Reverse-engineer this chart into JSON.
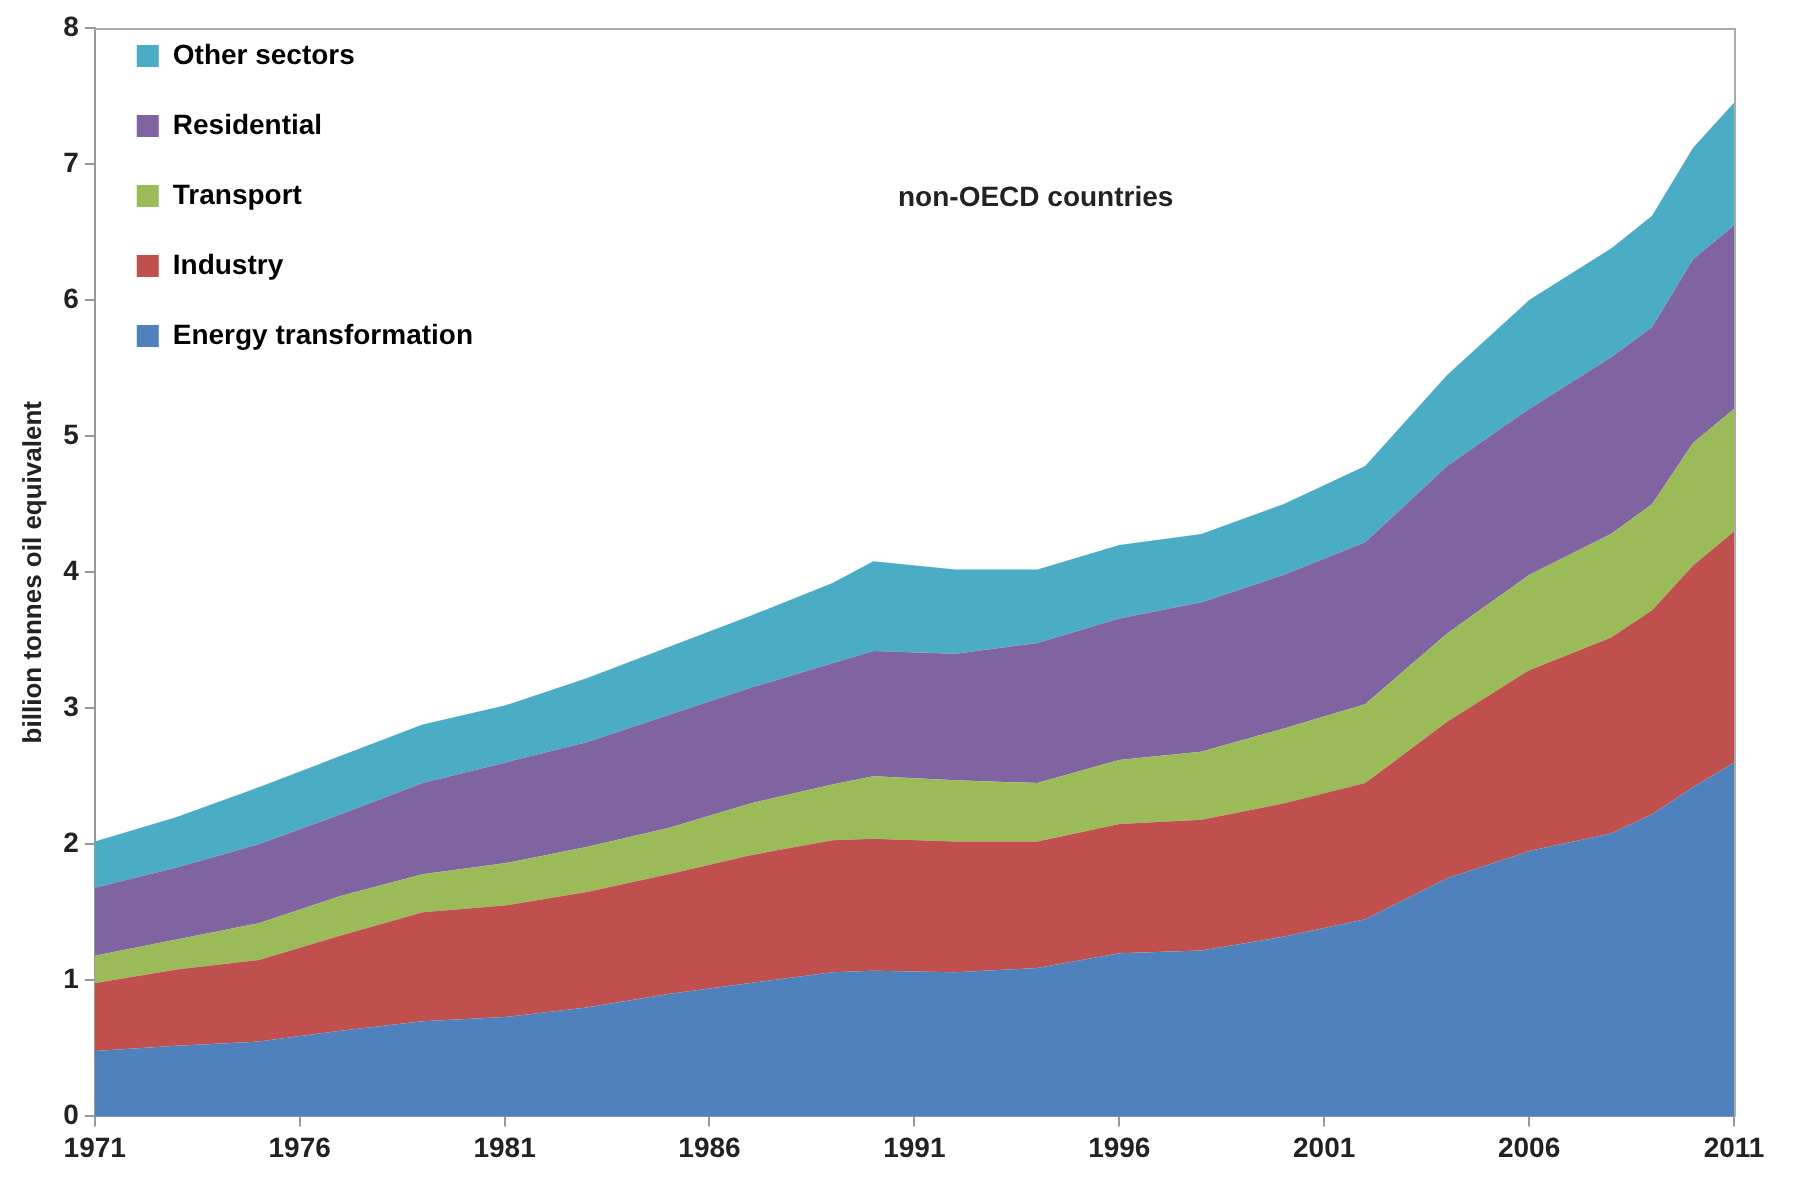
{
  "chart_data": {
    "type": "area",
    "stacked": true,
    "ylabel": "billion tonnes oil equivalent",
    "annotations": [
      "non-OECD countries"
    ],
    "x": [
      1971,
      1973,
      1975,
      1977,
      1979,
      1981,
      1983,
      1985,
      1987,
      1989,
      1990,
      1992,
      1994,
      1996,
      1998,
      2000,
      2002,
      2004,
      2006,
      2008,
      2009,
      2010,
      2011
    ],
    "series": [
      {
        "name": "Energy transformation",
        "color": "#4f81bd",
        "values": [
          0.48,
          0.52,
          0.55,
          0.63,
          0.7,
          0.73,
          0.8,
          0.9,
          0.98,
          1.06,
          1.07,
          1.06,
          1.09,
          1.2,
          1.22,
          1.32,
          1.45,
          1.75,
          1.95,
          2.08,
          2.22,
          2.42,
          2.6
        ]
      },
      {
        "name": "Industry",
        "color": "#c0504d",
        "values": [
          0.5,
          0.56,
          0.6,
          0.7,
          0.8,
          0.82,
          0.85,
          0.88,
          0.94,
          0.97,
          0.97,
          0.96,
          0.93,
          0.95,
          0.96,
          0.98,
          1.0,
          1.15,
          1.33,
          1.44,
          1.5,
          1.63,
          1.7
        ]
      },
      {
        "name": "Transport",
        "color": "#9bbb59",
        "values": [
          0.2,
          0.22,
          0.27,
          0.29,
          0.28,
          0.31,
          0.33,
          0.34,
          0.38,
          0.41,
          0.46,
          0.45,
          0.43,
          0.47,
          0.5,
          0.55,
          0.58,
          0.65,
          0.7,
          0.76,
          0.78,
          0.9,
          0.9
        ]
      },
      {
        "name": "Residential",
        "color": "#8064a2",
        "values": [
          0.5,
          0.53,
          0.58,
          0.6,
          0.67,
          0.74,
          0.77,
          0.83,
          0.85,
          0.89,
          0.92,
          0.93,
          1.03,
          1.04,
          1.1,
          1.13,
          1.19,
          1.23,
          1.22,
          1.3,
          1.3,
          1.35,
          1.35
        ]
      },
      {
        "name": "Other sectors",
        "color": "#4bacc6",
        "values": [
          0.34,
          0.37,
          0.42,
          0.43,
          0.43,
          0.42,
          0.47,
          0.5,
          0.53,
          0.59,
          0.66,
          0.62,
          0.54,
          0.54,
          0.5,
          0.52,
          0.56,
          0.67,
          0.8,
          0.8,
          0.82,
          0.82,
          0.9
        ]
      }
    ],
    "xlim": [
      1971,
      2011
    ],
    "xticks": [
      1971,
      1976,
      1981,
      1986,
      1991,
      1996,
      2001,
      2006,
      2011
    ],
    "ylim": [
      0,
      8
    ],
    "yticks": [
      0,
      1,
      2,
      3,
      4,
      5,
      6,
      7,
      8
    ],
    "grid": false,
    "legend": "top left",
    "marker": "none"
  }
}
